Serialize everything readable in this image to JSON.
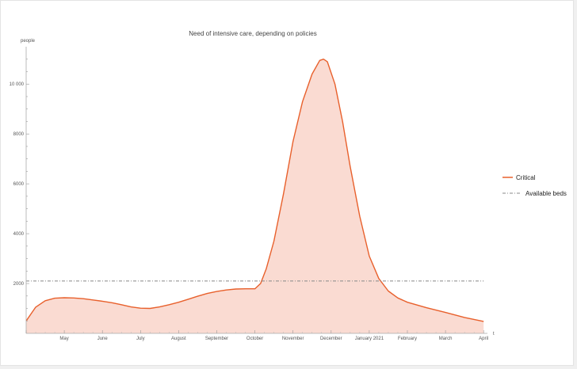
{
  "chart_data": {
    "type": "area",
    "title": "Need of intensive care, depending on policies",
    "ylabel": "people",
    "xlabel": "t",
    "ylim": [
      0,
      11500
    ],
    "xlim": [
      0,
      12.1
    ],
    "y_ticks": [
      {
        "value": 2000,
        "label": "2000"
      },
      {
        "value": 4000,
        "label": "4000"
      },
      {
        "value": 6000,
        "label": "6000"
      },
      {
        "value": 8000,
        "label": "8000"
      },
      {
        "value": 10000,
        "label": "10 000"
      }
    ],
    "x_ticks": [
      {
        "value": 1,
        "label": "May"
      },
      {
        "value": 2,
        "label": "June"
      },
      {
        "value": 3,
        "label": "July"
      },
      {
        "value": 4,
        "label": "August"
      },
      {
        "value": 5,
        "label": "September"
      },
      {
        "value": 6,
        "label": "October"
      },
      {
        "value": 7,
        "label": "November"
      },
      {
        "value": 8,
        "label": "December"
      },
      {
        "value": 9,
        "label": "January 2021"
      },
      {
        "value": 10,
        "label": "February"
      },
      {
        "value": 11,
        "label": "March"
      },
      {
        "value": 12,
        "label": "April"
      }
    ],
    "series": [
      {
        "name": "Critical",
        "color": "#e8602c",
        "fill": "#fadbd2",
        "points": [
          [
            0,
            500
          ],
          [
            0.25,
            1050
          ],
          [
            0.5,
            1310
          ],
          [
            0.75,
            1410
          ],
          [
            1,
            1430
          ],
          [
            1.25,
            1420
          ],
          [
            1.5,
            1390
          ],
          [
            1.75,
            1340
          ],
          [
            2,
            1290
          ],
          [
            2.25,
            1230
          ],
          [
            2.5,
            1150
          ],
          [
            2.75,
            1060
          ],
          [
            3,
            1010
          ],
          [
            3.25,
            1000
          ],
          [
            3.5,
            1060
          ],
          [
            3.75,
            1150
          ],
          [
            4,
            1250
          ],
          [
            4.25,
            1370
          ],
          [
            4.5,
            1490
          ],
          [
            4.75,
            1600
          ],
          [
            5,
            1680
          ],
          [
            5.25,
            1740
          ],
          [
            5.5,
            1780
          ],
          [
            5.75,
            1790
          ],
          [
            6,
            1790
          ],
          [
            6.15,
            2000
          ],
          [
            6.3,
            2600
          ],
          [
            6.5,
            3700
          ],
          [
            6.75,
            5600
          ],
          [
            7,
            7700
          ],
          [
            7.25,
            9300
          ],
          [
            7.5,
            10400
          ],
          [
            7.7,
            10950
          ],
          [
            7.8,
            11000
          ],
          [
            7.9,
            10900
          ],
          [
            8.1,
            10000
          ],
          [
            8.3,
            8500
          ],
          [
            8.5,
            6700
          ],
          [
            8.75,
            4700
          ],
          [
            9,
            3100
          ],
          [
            9.25,
            2200
          ],
          [
            9.5,
            1700
          ],
          [
            9.75,
            1420
          ],
          [
            10,
            1250
          ],
          [
            10.5,
            1030
          ],
          [
            11,
            840
          ],
          [
            11.5,
            640
          ],
          [
            12,
            480
          ]
        ]
      },
      {
        "name": "Available beds",
        "color": "#888888",
        "dash": "dot-dash",
        "value": 2100
      }
    ],
    "legend": "right",
    "grid": false
  }
}
